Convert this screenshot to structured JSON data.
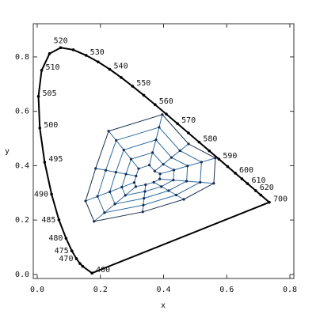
{
  "chart_data": {
    "type": "line",
    "xlabel": "x",
    "ylabel": "y",
    "xlim": [
      -0.0125,
      0.8125
    ],
    "ylim": [
      -0.015,
      0.922
    ],
    "xticks": [
      {
        "value": 0,
        "label": "0.0"
      },
      0.2,
      0.4,
      0.6,
      0.8
    ],
    "yticks": [
      {
        "value": 0,
        "label": "0.0"
      },
      0.2,
      0.4,
      0.6,
      0.8
    ],
    "locus": {
      "color": "#000000",
      "x": [
        0.1733,
        0.144,
        0.1355,
        0.1241,
        0.1096,
        0.0913,
        0.0687,
        0.0454,
        0.0235,
        0.0082,
        0.0039,
        0.0139,
        0.0389,
        0.0743,
        0.1142,
        0.1547,
        0.1929,
        0.2296,
        0.2658,
        0.3016,
        0.3373,
        0.3731,
        0.4087,
        0.4441,
        0.4788,
        0.5125,
        0.5448,
        0.5752,
        0.6029,
        0.627,
        0.6482,
        0.6658,
        0.6915,
        0.7079,
        0.7347
      ],
      "y": [
        0.0048,
        0.0297,
        0.0399,
        0.0578,
        0.0868,
        0.1327,
        0.2007,
        0.295,
        0.4127,
        0.5384,
        0.6548,
        0.7502,
        0.812,
        0.8338,
        0.8262,
        0.8059,
        0.7816,
        0.7543,
        0.7243,
        0.6923,
        0.6589,
        0.6245,
        0.5896,
        0.5547,
        0.5202,
        0.4866,
        0.4544,
        0.4242,
        0.3965,
        0.3725,
        0.3514,
        0.334,
        0.3083,
        0.292,
        0.2653
      ],
      "labels": [
        "400",
        null,
        null,
        "470",
        "475",
        "480",
        "485",
        "490",
        "495",
        "500",
        "505",
        "510",
        null,
        "520",
        null,
        "530",
        null,
        "540",
        null,
        "550",
        null,
        "560",
        null,
        "570",
        null,
        "580",
        null,
        "590",
        null,
        "600",
        null,
        "610",
        "620",
        null,
        "700"
      ]
    },
    "web": {
      "color": "#2f6aa0",
      "point_color": "#1a2a50",
      "rings": [
        {
          "x": [
            0.226,
            0.396,
            0.479,
            0.564,
            0.559,
            0.464,
            0.334,
            0.18,
            0.153,
            0.185
          ],
          "y": [
            0.527,
            0.588,
            0.48,
            0.428,
            0.335,
            0.276,
            0.23,
            0.195,
            0.27,
            0.39
          ]
        },
        {
          "x": [
            0.25,
            0.386,
            0.452,
            0.52,
            0.516,
            0.44,
            0.336,
            0.213,
            0.191,
            0.217
          ],
          "y": [
            0.493,
            0.541,
            0.455,
            0.413,
            0.339,
            0.292,
            0.255,
            0.227,
            0.287,
            0.383
          ]
        },
        {
          "x": [
            0.274,
            0.376,
            0.425,
            0.476,
            0.473,
            0.416,
            0.338,
            0.246,
            0.23,
            0.249
          ],
          "y": [
            0.458,
            0.495,
            0.43,
            0.399,
            0.343,
            0.308,
            0.28,
            0.259,
            0.304,
            0.376
          ]
        },
        {
          "x": [
            0.297,
            0.365,
            0.399,
            0.433,
            0.431,
            0.393,
            0.341,
            0.279,
            0.268,
            0.281
          ],
          "y": [
            0.424,
            0.448,
            0.405,
            0.384,
            0.347,
            0.323,
            0.305,
            0.291,
            0.321,
            0.369
          ]
        },
        {
          "x": [
            0.321,
            0.355,
            0.372,
            0.389,
            0.388,
            0.369,
            0.343,
            0.312,
            0.307,
            0.313
          ],
          "y": [
            0.389,
            0.402,
            0.38,
            0.37,
            0.351,
            0.339,
            0.33,
            0.323,
            0.338,
            0.362
          ]
        }
      ]
    }
  }
}
